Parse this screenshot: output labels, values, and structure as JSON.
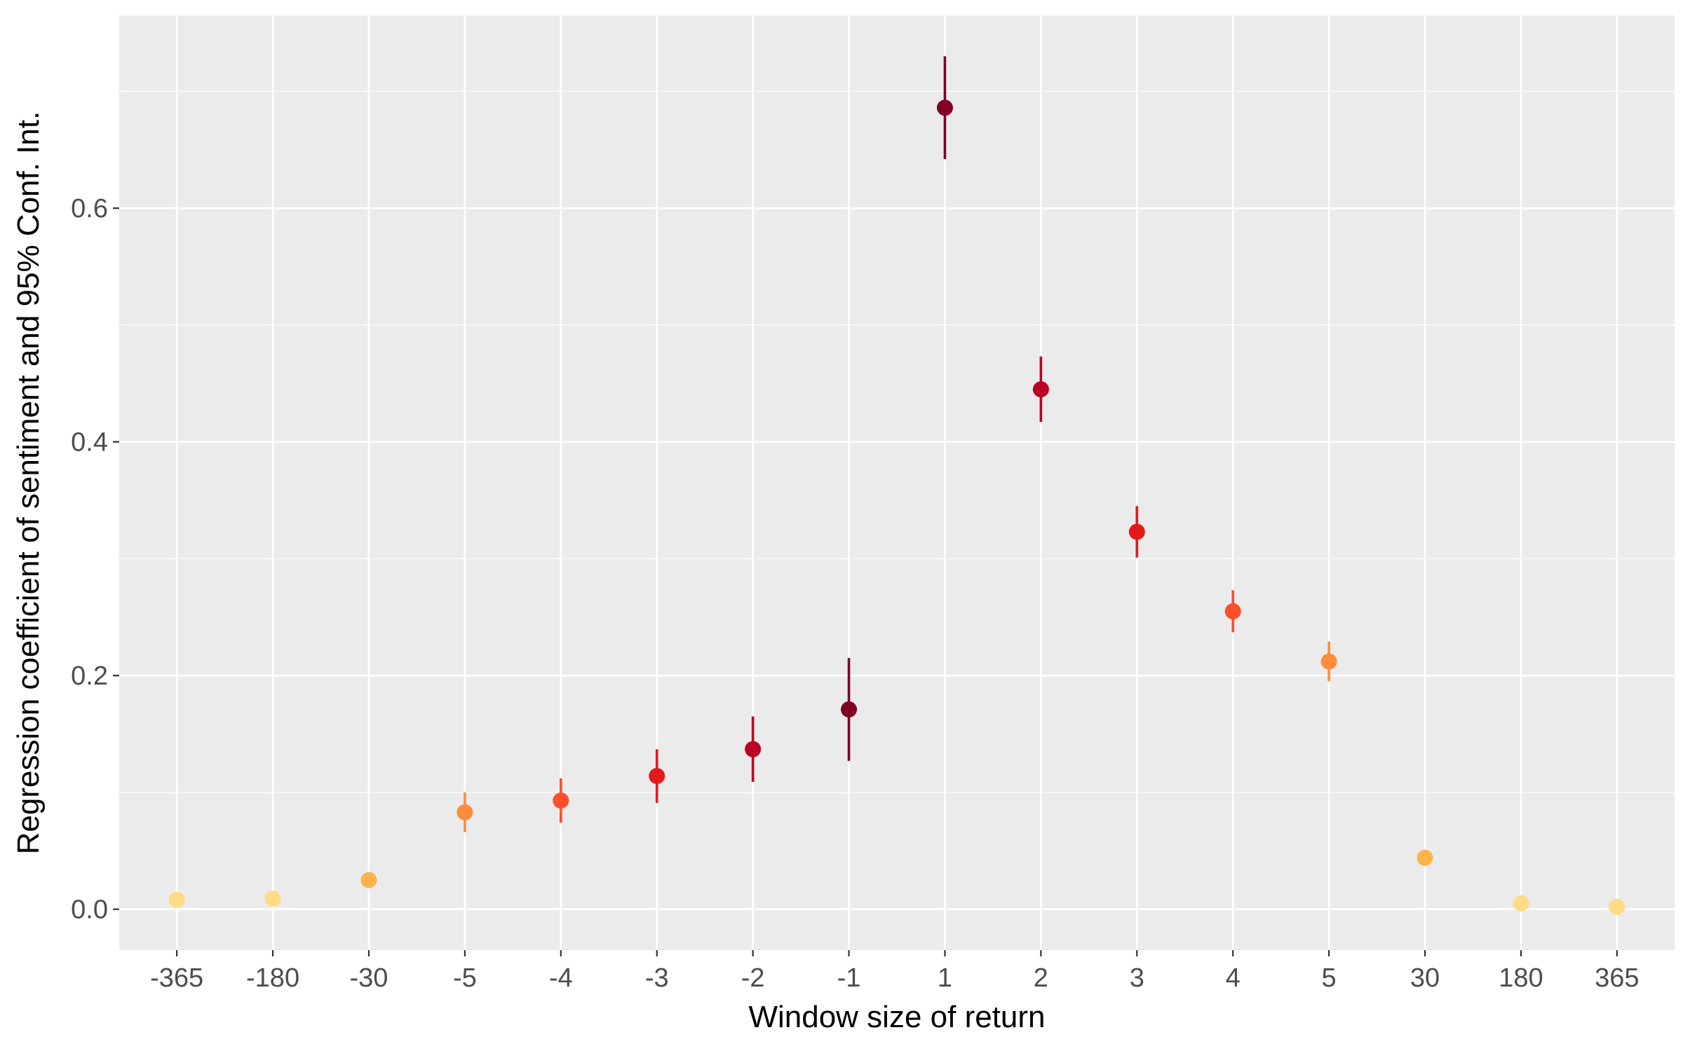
{
  "chart_data": {
    "type": "scatter",
    "title": "",
    "xlabel": "Window size of return",
    "ylabel": "Regression coefficient of sentiment and 95% Conf. Int.",
    "categories": [
      "-365",
      "-180",
      "-30",
      "-5",
      "-4",
      "-3",
      "-2",
      "-1",
      "1",
      "2",
      "3",
      "4",
      "5",
      "30",
      "180",
      "365"
    ],
    "values": [
      0.008,
      0.009,
      0.025,
      0.083,
      0.093,
      0.114,
      0.137,
      0.171,
      0.686,
      0.445,
      0.323,
      0.255,
      0.212,
      0.044,
      0.005,
      0.002
    ],
    "ci_lower": [
      0.006,
      0.006,
      0.02,
      0.066,
      0.074,
      0.091,
      0.109,
      0.127,
      0.642,
      0.417,
      0.301,
      0.237,
      0.195,
      0.039,
      0.002,
      0.0
    ],
    "ci_upper": [
      0.01,
      0.012,
      0.03,
      0.1,
      0.112,
      0.137,
      0.165,
      0.215,
      0.73,
      0.473,
      0.345,
      0.273,
      0.229,
      0.049,
      0.008,
      0.004
    ],
    "colors": [
      "#FFDC83",
      "#FFDC83",
      "#FEB24C",
      "#FD8D3C",
      "#FC4E2A",
      "#E31A1C",
      "#BD0026",
      "#800026",
      "#800026",
      "#BD0026",
      "#E31A1C",
      "#FC4E2A",
      "#FD8D3C",
      "#FEB24C",
      "#FFDC83",
      "#FFDC83"
    ],
    "y_ticks": [
      0.0,
      0.2,
      0.4,
      0.6
    ],
    "y_tick_labels": [
      "0.0",
      "0.2",
      "0.4",
      "0.6"
    ],
    "ylim": [
      -0.035,
      0.765
    ],
    "grid": true,
    "legend": "none",
    "panel_background": "#EBEBEB"
  }
}
